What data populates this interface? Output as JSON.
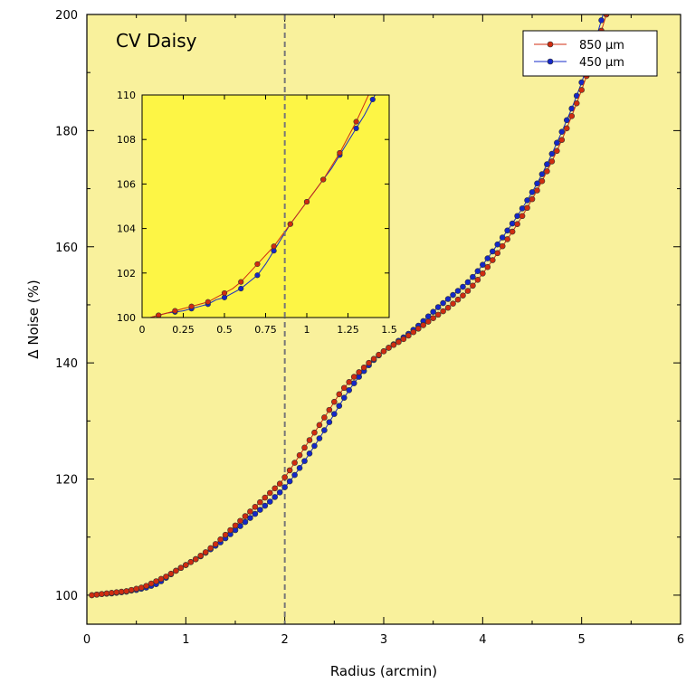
{
  "chart_data": {
    "type": "line",
    "title": "",
    "annotation": "CV Daisy",
    "xlabel": "Radius (arcmin)",
    "ylabel": "Δ Noise (%)",
    "xlim": [
      0,
      6
    ],
    "ylim": [
      95,
      200
    ],
    "xticks": [
      0,
      1,
      2,
      3,
      4,
      5,
      6
    ],
    "yticks": [
      100,
      120,
      140,
      160,
      180,
      200
    ],
    "grid": false,
    "legend_position": "top-right",
    "background_color": "#f9f19c",
    "reference_line": {
      "x": 2,
      "style": "dashed",
      "color": "#777777"
    },
    "series": [
      {
        "name": "850 µm",
        "color": "#d02c10",
        "x": [
          0.05,
          0.1,
          0.15,
          0.2,
          0.25,
          0.3,
          0.35,
          0.4,
          0.45,
          0.5,
          0.55,
          0.6,
          0.65,
          0.7,
          0.75,
          0.8,
          0.85,
          0.9,
          0.95,
          1.0,
          1.05,
          1.1,
          1.15,
          1.2,
          1.25,
          1.3,
          1.35,
          1.4,
          1.45,
          1.5,
          1.55,
          1.6,
          1.65,
          1.7,
          1.75,
          1.8,
          1.85,
          1.9,
          1.95,
          2.0,
          2.05,
          2.1,
          2.15,
          2.2,
          2.25,
          2.3,
          2.35,
          2.4,
          2.45,
          2.5,
          2.55,
          2.6,
          2.65,
          2.7,
          2.75,
          2.8,
          2.85,
          2.9,
          2.95,
          3.0,
          3.05,
          3.1,
          3.15,
          3.2,
          3.25,
          3.3,
          3.35,
          3.4,
          3.45,
          3.5,
          3.55,
          3.6,
          3.65,
          3.7,
          3.75,
          3.8,
          3.85,
          3.9,
          3.95,
          4.0,
          4.05,
          4.1,
          4.15,
          4.2,
          4.25,
          4.3,
          4.35,
          4.4,
          4.45,
          4.5,
          4.55,
          4.6,
          4.65,
          4.7,
          4.75,
          4.8,
          4.85,
          4.9,
          4.95,
          5.0,
          5.05,
          5.1,
          5.15,
          5.2,
          5.25,
          5.3,
          5.35,
          5.4,
          5.45
        ],
        "y": [
          100.0,
          100.1,
          100.2,
          100.3,
          100.4,
          100.5,
          100.6,
          100.7,
          100.9,
          101.1,
          101.3,
          101.6,
          102.0,
          102.4,
          102.8,
          103.2,
          103.7,
          104.2,
          104.7,
          105.2,
          105.7,
          106.2,
          106.8,
          107.4,
          108.1,
          108.8,
          109.6,
          110.4,
          111.2,
          112.0,
          112.8,
          113.6,
          114.4,
          115.2,
          116.0,
          116.8,
          117.6,
          118.4,
          119.2,
          120.3,
          121.5,
          122.8,
          124.1,
          125.4,
          126.7,
          128.0,
          129.3,
          130.6,
          131.9,
          133.3,
          134.6,
          135.7,
          136.7,
          137.6,
          138.4,
          139.2,
          140.0,
          140.7,
          141.4,
          142.0,
          142.6,
          143.1,
          143.6,
          144.1,
          144.7,
          145.3,
          145.9,
          146.5,
          147.1,
          147.7,
          148.3,
          148.9,
          149.5,
          150.2,
          150.9,
          151.6,
          152.4,
          153.3,
          154.3,
          155.4,
          156.5,
          157.7,
          158.9,
          160.1,
          161.3,
          162.6,
          163.9,
          165.3,
          166.7,
          168.2,
          169.7,
          171.3,
          173.0,
          174.7,
          176.5,
          178.4,
          180.4,
          182.5,
          184.7,
          187.0,
          189.4,
          191.9,
          194.5,
          197.2,
          200.0,
          202.9,
          205.9,
          209.0,
          212.2
        ]
      },
      {
        "name": "450 µm",
        "color": "#1428c8",
        "x": [
          0.05,
          0.1,
          0.15,
          0.2,
          0.25,
          0.3,
          0.35,
          0.4,
          0.45,
          0.5,
          0.55,
          0.6,
          0.65,
          0.7,
          0.75,
          0.8,
          0.85,
          0.9,
          0.95,
          1.0,
          1.05,
          1.1,
          1.15,
          1.2,
          1.25,
          1.3,
          1.35,
          1.4,
          1.45,
          1.5,
          1.55,
          1.6,
          1.65,
          1.7,
          1.75,
          1.8,
          1.85,
          1.9,
          1.95,
          2.0,
          2.05,
          2.1,
          2.15,
          2.2,
          2.25,
          2.3,
          2.35,
          2.4,
          2.45,
          2.5,
          2.55,
          2.6,
          2.65,
          2.7,
          2.75,
          2.8,
          2.85,
          2.9,
          2.95,
          3.0,
          3.05,
          3.1,
          3.15,
          3.2,
          3.25,
          3.3,
          3.35,
          3.4,
          3.45,
          3.5,
          3.55,
          3.6,
          3.65,
          3.7,
          3.75,
          3.8,
          3.85,
          3.9,
          3.95,
          4.0,
          4.05,
          4.1,
          4.15,
          4.2,
          4.25,
          4.3,
          4.35,
          4.4,
          4.45,
          4.5,
          4.55,
          4.6,
          4.65,
          4.7,
          4.75,
          4.8,
          4.85,
          4.9,
          4.95,
          5.0,
          5.05,
          5.1,
          5.15,
          5.2,
          5.25,
          5.3
        ],
        "y": [
          100.0,
          100.1,
          100.2,
          100.25,
          100.3,
          100.4,
          100.5,
          100.6,
          100.8,
          100.9,
          101.1,
          101.3,
          101.6,
          101.9,
          102.4,
          103.0,
          103.6,
          104.2,
          104.7,
          105.2,
          105.7,
          106.2,
          106.7,
          107.3,
          107.9,
          108.5,
          109.1,
          109.8,
          110.5,
          111.2,
          111.9,
          112.6,
          113.3,
          114.0,
          114.7,
          115.4,
          116.1,
          116.9,
          117.7,
          118.6,
          119.6,
          120.7,
          121.9,
          123.1,
          124.4,
          125.7,
          127.0,
          128.4,
          129.8,
          131.2,
          132.6,
          134.0,
          135.3,
          136.5,
          137.6,
          138.6,
          139.6,
          140.5,
          141.3,
          142.0,
          142.6,
          143.2,
          143.8,
          144.4,
          145.0,
          145.7,
          146.4,
          147.2,
          148.0,
          148.8,
          149.6,
          150.3,
          151.0,
          151.7,
          152.4,
          153.1,
          153.9,
          154.8,
          155.8,
          156.9,
          158.0,
          159.2,
          160.4,
          161.6,
          162.8,
          164.0,
          165.3,
          166.6,
          168.0,
          169.4,
          170.9,
          172.5,
          174.2,
          176.0,
          177.9,
          179.8,
          181.8,
          183.8,
          186.0,
          188.3,
          190.8,
          193.4,
          196.2,
          199.0,
          202.0,
          205.0
        ]
      }
    ],
    "inset": {
      "xlim": [
        0,
        1.5
      ],
      "ylim": [
        100,
        110
      ],
      "xticks": [
        0,
        0.25,
        0.5,
        0.75,
        1,
        1.25,
        1.5
      ],
      "yticks": [
        100,
        102,
        104,
        106,
        108,
        110
      ],
      "xtick_labels": [
        "0",
        "0.25",
        "0.5",
        "0.75",
        "1",
        "1.25",
        "1.5"
      ],
      "ytick_labels": [
        "100",
        "102",
        "104",
        "106",
        "108",
        "110"
      ],
      "background_color": "#fdf545"
    }
  }
}
